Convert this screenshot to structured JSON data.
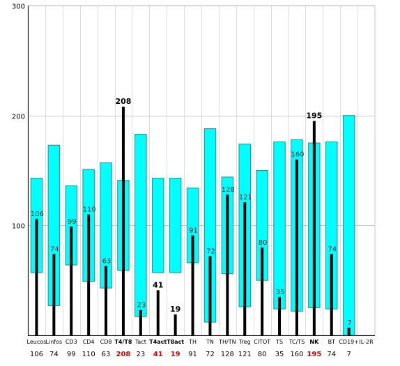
{
  "chart_data": {
    "type": "bar",
    "ylim": [
      0,
      300
    ],
    "yticks": [
      "100",
      "200",
      "300"
    ],
    "grid": true,
    "colors": {
      "range_fill": "#00FFFF",
      "range_stroke": "#2a8a8a",
      "value_bar": "#000000",
      "value_label": "#000000",
      "highlight_label": "#cc0000",
      "grid": "#c8c8c8",
      "axis": "#000000"
    },
    "categories": [
      "Leucos",
      "Linfos",
      "CD3",
      "CD4",
      "CD8",
      "T4/T8",
      "Tact",
      "T4act",
      "T8act",
      "TH",
      "TN",
      "TH/TN",
      "Treg",
      "CITOT",
      "TS",
      "TC/TS",
      "NK",
      "BT",
      "CD19+",
      "IL-2R"
    ],
    "values": [
      106,
      74,
      99,
      110,
      63,
      208,
      23,
      41,
      19,
      91,
      72,
      128,
      121,
      80,
      35,
      160,
      195,
      74,
      7,
      null
    ],
    "bottom_labels": [
      "106",
      "74",
      "99",
      "110",
      "63",
      "208",
      "23",
      "41",
      "19",
      "91",
      "72",
      "128",
      "121",
      "80",
      "35",
      "160",
      "195",
      "74",
      "7",
      ""
    ],
    "bar_labels": [
      "106",
      "74",
      "99",
      "110",
      "63",
      "208",
      "23",
      "41",
      "19",
      "91",
      "72",
      "128",
      "121",
      "80",
      "35",
      "160",
      "195",
      "74",
      "7",
      ""
    ],
    "highlighted": [
      false,
      false,
      false,
      false,
      false,
      true,
      false,
      true,
      true,
      false,
      false,
      false,
      false,
      false,
      false,
      false,
      true,
      false,
      false,
      false
    ],
    "reference_ranges": [
      [
        57,
        143
      ],
      [
        27,
        173
      ],
      [
        64,
        136
      ],
      [
        49,
        151
      ],
      [
        43,
        157
      ],
      [
        59,
        141
      ],
      [
        17,
        183
      ],
      [
        57,
        143
      ],
      [
        57,
        143
      ],
      [
        66,
        134
      ],
      [
        12,
        188
      ],
      [
        56,
        144
      ],
      [
        26,
        174
      ],
      [
        50,
        150
      ],
      [
        24,
        176
      ],
      [
        22,
        178
      ],
      [
        25,
        175
      ],
      [
        24,
        176
      ],
      [
        0,
        200
      ],
      null
    ]
  }
}
